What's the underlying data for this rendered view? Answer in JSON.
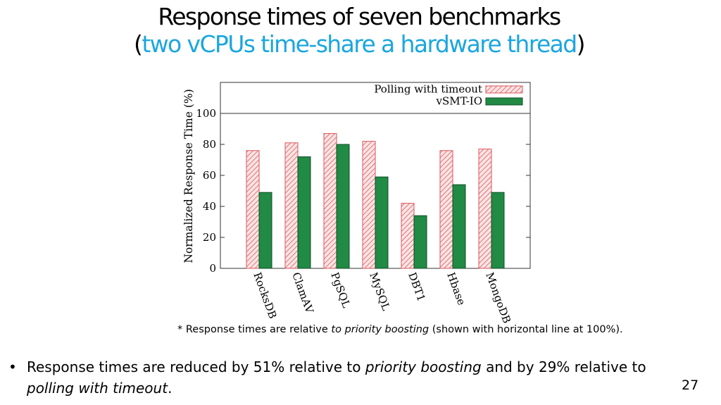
{
  "slide": {
    "title_line1": "Response times of seven benchmarks",
    "title_open": "(",
    "title_accent": "two vCPUs time-share a hardware thread",
    "title_close": ")",
    "footnote_prefix": "* Response times are relative ",
    "footnote_italic": "to priority boosting",
    "footnote_suffix": " (shown with horizontal line at 100%).",
    "bullet_symbol": "•",
    "bullet_text_1": "Response times are reduced by 51% relative to ",
    "bullet_italic_1": "priority boosting",
    "bullet_text_2": " and by 29% relative to ",
    "bullet_italic_2": "polling with timeout",
    "bullet_text_3": ".",
    "page_number": "27"
  },
  "colors": {
    "accent": "#1aa6e0",
    "hatch_fill": "#fde4e4",
    "hatch_stroke": "#d9555b",
    "solid_fill": "#218a45",
    "solid_stroke": "#0f4e24"
  },
  "chart_data": {
    "type": "bar",
    "ylabel": "Normalized Response Time (%)",
    "ylim": [
      0,
      120
    ],
    "yticks": [
      0,
      20,
      40,
      60,
      80,
      100
    ],
    "reference_line": 100,
    "legend_position": "top-right",
    "categories": [
      "RocksDB",
      "ClamAV",
      "PgSQL",
      "MySQL",
      "DBT1",
      "Hbase",
      "MongoDB"
    ],
    "series": [
      {
        "name": "Polling with timeout",
        "style": "hatched",
        "values": [
          76,
          81,
          87,
          82,
          42,
          76,
          77
        ]
      },
      {
        "name": "vSMT-IO",
        "style": "solid",
        "values": [
          49,
          72,
          80,
          59,
          34,
          54,
          49
        ]
      }
    ]
  }
}
